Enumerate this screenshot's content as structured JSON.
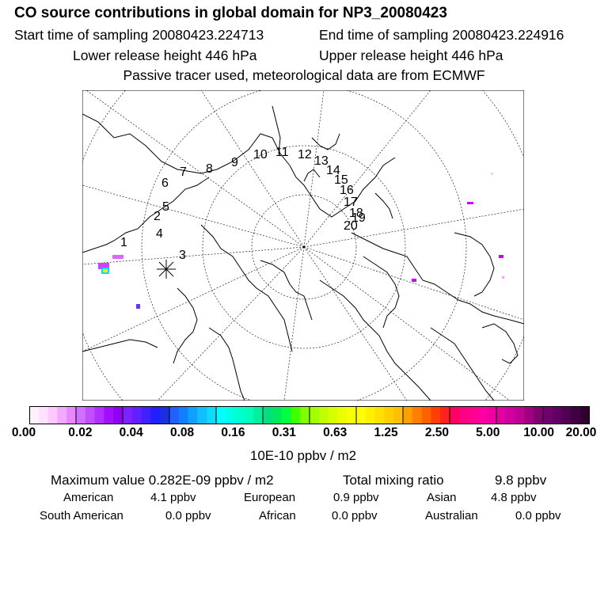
{
  "title": "CO  source contributions in global domain for NP3_20080423",
  "header": {
    "start_label": "Start time of sampling 20080423.224713",
    "end_label": "End time of sampling 20080423.224916",
    "lower_label": "Lower release height  446 hPa",
    "upper_label": "Upper release height  446 hPa",
    "tracer_note": "Passive tracer used, meteorological data are from ECMWF"
  },
  "map": {
    "projection": "north polar stereographic",
    "trajectory_labels": [
      "1",
      "2",
      "3",
      "4",
      "5",
      "6",
      "7",
      "8",
      "9",
      "10",
      "11",
      "12",
      "13",
      "14",
      "15",
      "16",
      "17",
      "18",
      "19",
      "20"
    ],
    "release_marker": "release-point-asterisk"
  },
  "colorbar": {
    "ticks": [
      "0.00",
      "0.02",
      "0.04",
      "0.08",
      "0.16",
      "0.31",
      "0.63",
      "1.25",
      "2.50",
      "5.00",
      "10.00",
      "20.00"
    ],
    "unit": "10E-10 ppbv / m2",
    "colors": [
      [
        "#fff0ff",
        "#ffe0ff",
        "#ffc8ff",
        "#f5a8ff",
        "#e888ff"
      ],
      [
        "#d070ff",
        "#c050ff",
        "#b030ff",
        "#a010ff",
        "#9000f0"
      ],
      [
        "#8020ff",
        "#6020ff",
        "#4020ff",
        "#2020ff",
        "#1830e0"
      ],
      [
        "#2060ff",
        "#1080ff",
        "#10a0ff",
        "#10c0ff",
        "#10d8ff"
      ],
      [
        "#00ffff",
        "#00ffe8",
        "#00ffd0",
        "#00ffb8",
        "#00f0a0"
      ],
      [
        "#00e080",
        "#00e860",
        "#00ff40",
        "#40ff00",
        "#80ff00"
      ],
      [
        "#a0ff00",
        "#c0ff00",
        "#d8ff00",
        "#ecff00",
        "#f8ff00"
      ],
      [
        "#ffff00",
        "#fff000",
        "#ffe000",
        "#ffd000",
        "#ffc000"
      ],
      [
        "#ffa000",
        "#ff8000",
        "#ff6000",
        "#ff4000",
        "#ff2020"
      ],
      [
        "#ff0060",
        "#ff0080",
        "#ff0090",
        "#ff00a0",
        "#f000a0"
      ],
      [
        "#e000a0",
        "#d000a0",
        "#c00090",
        "#a00080",
        "#800070"
      ],
      [
        "#700070",
        "#600060",
        "#500050",
        "#400040",
        "#300030"
      ]
    ]
  },
  "stats": {
    "max_label": "Maximum value  0.282E-09 ppbv / m2",
    "total_label": "Total mixing ratio",
    "total_value": "9.8 ppbv",
    "regions": [
      {
        "name": "American",
        "value": "4.1 ppbv"
      },
      {
        "name": "European",
        "value": "0.9 ppbv"
      },
      {
        "name": "Asian",
        "value": "4.8 ppbv"
      },
      {
        "name": "South American",
        "value": "0.0 ppbv"
      },
      {
        "name": "African",
        "value": "0.0 ppbv"
      },
      {
        "name": "Australian",
        "value": "0.0 ppbv"
      }
    ]
  }
}
